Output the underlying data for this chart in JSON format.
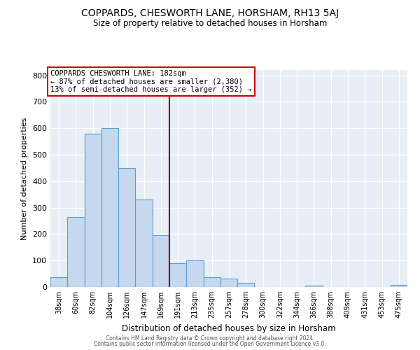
{
  "title": "COPPARDS, CHESWORTH LANE, HORSHAM, RH13 5AJ",
  "subtitle": "Size of property relative to detached houses in Horsham",
  "xlabel": "Distribution of detached houses by size in Horsham",
  "ylabel": "Number of detached properties",
  "bar_labels": [
    "38sqm",
    "60sqm",
    "82sqm",
    "104sqm",
    "126sqm",
    "147sqm",
    "169sqm",
    "191sqm",
    "213sqm",
    "235sqm",
    "257sqm",
    "278sqm",
    "300sqm",
    "322sqm",
    "344sqm",
    "366sqm",
    "388sqm",
    "409sqm",
    "431sqm",
    "453sqm",
    "475sqm"
  ],
  "bar_values": [
    38,
    265,
    580,
    600,
    450,
    330,
    197,
    90,
    100,
    38,
    32,
    15,
    0,
    0,
    0,
    5,
    0,
    0,
    0,
    0,
    8
  ],
  "bar_color": "#c5d8ee",
  "bar_edge_color": "#5a9fd4",
  "property_line_color": "#8b0000",
  "annotation_title": "COPPARDS CHESWORTH LANE: 182sqm",
  "annotation_line1": "← 87% of detached houses are smaller (2,380)",
  "annotation_line2": "13% of semi-detached houses are larger (352) →",
  "annotation_box_color": "#cc0000",
  "ylim": [
    0,
    820
  ],
  "yticks": [
    0,
    100,
    200,
    300,
    400,
    500,
    600,
    700,
    800
  ],
  "footer1": "Contains HM Land Registry data © Crown copyright and database right 2024.",
  "footer2": "Contains public sector information licensed under the Open Government Licence v3.0.",
  "bg_color": "#e8eef6"
}
